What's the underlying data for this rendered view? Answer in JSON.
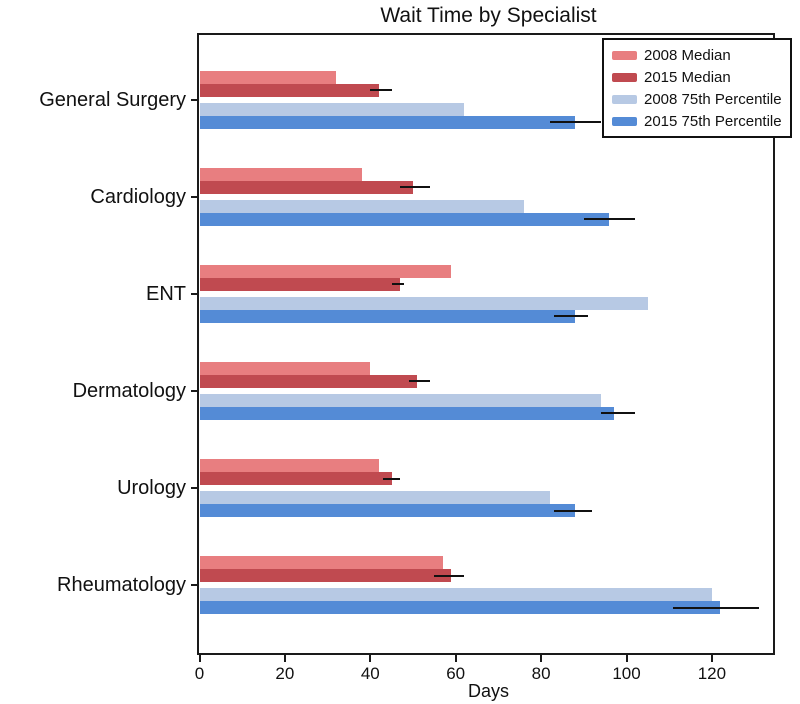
{
  "title": "Wait Time by Specialist",
  "xlabel": "Days",
  "chart_data": {
    "type": "bar",
    "orientation": "horizontal",
    "title": "Wait Time by Specialist",
    "xlabel": "Days",
    "ylabel": "",
    "xlim": [
      0,
      136
    ],
    "xticks": [
      0,
      20,
      40,
      60,
      80,
      100,
      120
    ],
    "grid": false,
    "legend_position": "upper right",
    "categories": [
      "General Surgery",
      "Cardiology",
      "ENT",
      "Dermatology",
      "Urology",
      "Rheumatology"
    ],
    "series": [
      {
        "name": "2008 Median",
        "color": "#e87e80",
        "values": [
          32,
          38,
          59,
          40,
          42,
          57
        ]
      },
      {
        "name": "2015 Median",
        "color": "#c04a50",
        "values": [
          42,
          50,
          47,
          51,
          45,
          59
        ],
        "error_ranges": [
          [
            40,
            45
          ],
          [
            47,
            54
          ],
          [
            45,
            48
          ],
          [
            49,
            54
          ],
          [
            43,
            47
          ],
          [
            55,
            62
          ]
        ]
      },
      {
        "name": "2008 75th Percentile",
        "color": "#b7c9e4",
        "values": [
          62,
          76,
          105,
          94,
          82,
          120
        ]
      },
      {
        "name": "2015 75th Percentile",
        "color": "#548bd6",
        "values": [
          88,
          96,
          88,
          97,
          88,
          122
        ],
        "error_ranges": [
          [
            82,
            94
          ],
          [
            90,
            102
          ],
          [
            83,
            91
          ],
          [
            94,
            102
          ],
          [
            83,
            92
          ],
          [
            111,
            131
          ]
        ]
      }
    ],
    "error_bar_color": "#111111",
    "axis_color": "#1a1a1a"
  }
}
